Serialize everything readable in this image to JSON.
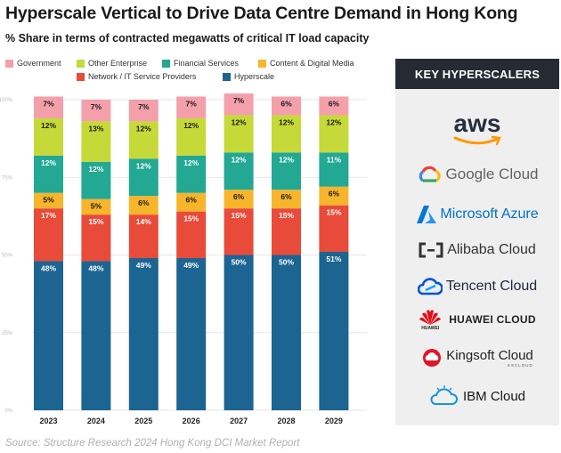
{
  "title": "Hyperscale Vertical to Drive Data Centre Demand in Hong Kong",
  "subtitle": "% Share in terms of contracted megawatts of critical IT load capacity",
  "source": "Source: Structure Research 2024 Hong Kong DCI Market Report",
  "legend": [
    {
      "label": "Government",
      "color": "#f4a0ab"
    },
    {
      "label": "Other Enterprise",
      "color": "#c5d939"
    },
    {
      "label": "Financial Services",
      "color": "#23a893"
    },
    {
      "label": "Content & Digital Media",
      "color": "#f7b52b"
    },
    {
      "label": "Network / IT Service Providers",
      "color": "#e84b3a"
    },
    {
      "label": "Hyperscale",
      "color": "#1c6491"
    }
  ],
  "chart_data": {
    "type": "bar",
    "stacked": true,
    "categories": [
      "2023",
      "2024",
      "2025",
      "2026",
      "2027",
      "2028",
      "2029"
    ],
    "y_ticks": [
      "0%",
      "25%",
      "50%",
      "75%",
      "100%"
    ],
    "ylim": [
      0,
      100
    ],
    "grid": true,
    "series": [
      {
        "name": "Hyperscale",
        "color": "#1c6491",
        "values": [
          48,
          48,
          49,
          49,
          50,
          50,
          51
        ]
      },
      {
        "name": "Network / IT Service Providers",
        "color": "#e84b3a",
        "values": [
          17,
          15,
          14,
          15,
          15,
          15,
          15
        ]
      },
      {
        "name": "Content & Digital Media",
        "color": "#f7b52b",
        "values": [
          5,
          5,
          6,
          6,
          6,
          6,
          6
        ]
      },
      {
        "name": "Financial Services",
        "color": "#23a893",
        "values": [
          12,
          12,
          12,
          12,
          12,
          12,
          11
        ]
      },
      {
        "name": "Other Enterprise",
        "color": "#c5d939",
        "values": [
          12,
          13,
          12,
          12,
          12,
          12,
          12
        ]
      },
      {
        "name": "Government",
        "color": "#f4a0ab",
        "values": [
          7,
          7,
          7,
          7,
          7,
          6,
          6
        ]
      }
    ],
    "label_colors": [
      "#ffffff",
      "#ffffff",
      "#1a1a1a",
      "#ffffff",
      "#1a1a1a",
      "#1a1a1a"
    ]
  },
  "panel": {
    "header": "KEY HYPERSCALERS",
    "logos": [
      {
        "name": "aws",
        "icon": "aws-smile-icon"
      },
      {
        "name": "Google Cloud",
        "icon": "google-cloud-icon"
      },
      {
        "name": "Microsoft Azure",
        "icon": "azure-icon"
      },
      {
        "name": "Alibaba Cloud",
        "icon": "alibaba-cloud-icon"
      },
      {
        "name": "Tencent Cloud",
        "icon": "tencent-cloud-icon"
      },
      {
        "name": "HUAWEI CLOUD",
        "icon": "huawei-icon",
        "sub": "HUAWEI"
      },
      {
        "name": "Kingsoft Cloud",
        "icon": "kingsoft-cloud-icon",
        "sub": "KSCLOUD"
      },
      {
        "name": "IBM Cloud",
        "icon": "ibm-cloud-icon"
      }
    ]
  }
}
